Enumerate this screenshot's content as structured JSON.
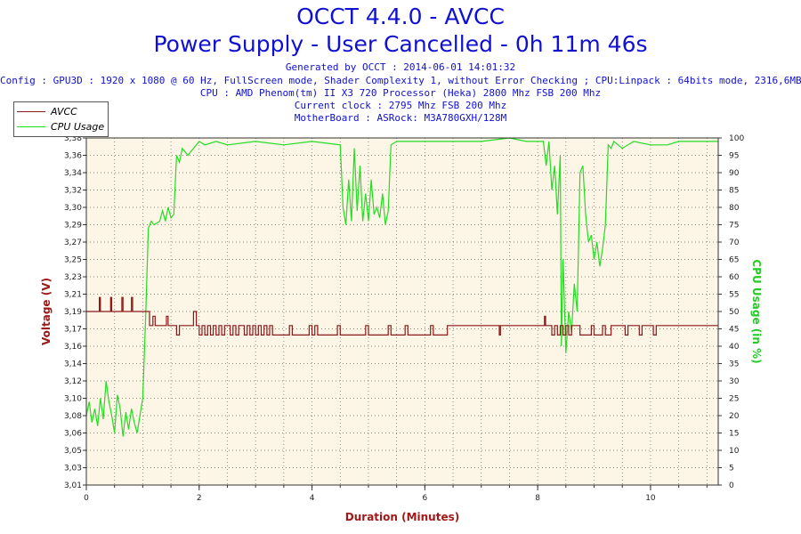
{
  "header": {
    "title": "OCCT 4.4.0 - AVCC",
    "subtitle": "Power Supply - User Cancelled - 0h 11m 46s",
    "generated": "Generated by OCCT : 2014-06-01 14:01:32",
    "config": "Config : GPU3D : 1920 x 1080 @ 60 Hz, FullScreen mode, Shader Complexity 1, without Error Checking ; CPU:Linpack : 64bits mode, 2316,6MB",
    "cpu": "CPU : AMD Phenom(tm) II X3 720 Processor (Heka) 2800 Mhz FSB 200 Mhz",
    "clock": "Current clock : 2795 Mhz FSB 200 Mhz",
    "motherboard": "MotherBoard : ASRock: M3A780GXH/128M"
  },
  "colors": {
    "avcc": "#8b1a1a",
    "cpu": "#22dd22",
    "plot_bg": "#fdf5e6",
    "title": "#1010d0"
  },
  "chart_data": {
    "type": "line",
    "xlabel": "Duration (Minutes)",
    "ylabel_left": "Voltage (V)",
    "ylabel_right": "CPU Usage (in %)",
    "xlim": [
      0,
      11.2
    ],
    "ylim_left": [
      3.01,
      3.38
    ],
    "ylim_right": [
      0,
      100
    ],
    "x_ticks": [
      "0",
      "2",
      "4",
      "6",
      "8",
      "10"
    ],
    "y_left_ticks": [
      "3,01",
      "3,03",
      "3,05",
      "3,06",
      "3,08",
      "3,10",
      "3,12",
      "3,14",
      "3,16",
      "3,17",
      "3,19",
      "3,21",
      "3,23",
      "3,25",
      "3,27",
      "3,29",
      "3,30",
      "3,32",
      "3,34",
      "3,36",
      "3,38"
    ],
    "y_right_ticks": [
      "0",
      "5",
      "10",
      "15",
      "20",
      "25",
      "30",
      "35",
      "40",
      "45",
      "50",
      "55",
      "60",
      "65",
      "70",
      "75",
      "80",
      "85",
      "90",
      "95",
      "100"
    ],
    "grid": true,
    "legend": {
      "position": "top-left"
    },
    "series": [
      {
        "name": "AVCC",
        "axis": "left",
        "step": true,
        "points": [
          [
            0,
            3.195
          ],
          [
            0.2,
            3.195
          ],
          [
            0.23,
            3.21
          ],
          [
            0.25,
            3.195
          ],
          [
            0.4,
            3.195
          ],
          [
            0.43,
            3.21
          ],
          [
            0.45,
            3.195
          ],
          [
            0.6,
            3.195
          ],
          [
            0.63,
            3.21
          ],
          [
            0.65,
            3.195
          ],
          [
            0.78,
            3.195
          ],
          [
            0.8,
            3.21
          ],
          [
            0.82,
            3.195
          ],
          [
            1.12,
            3.195
          ],
          [
            1.12,
            3.18
          ],
          [
            1.18,
            3.19
          ],
          [
            1.22,
            3.18
          ],
          [
            1.4,
            3.18
          ],
          [
            1.42,
            3.19
          ],
          [
            1.45,
            3.18
          ],
          [
            1.55,
            3.18
          ],
          [
            1.6,
            3.17
          ],
          [
            1.65,
            3.18
          ],
          [
            1.85,
            3.18
          ],
          [
            1.9,
            3.195
          ],
          [
            1.95,
            3.18
          ],
          [
            2.0,
            3.17
          ],
          [
            2.05,
            3.18
          ],
          [
            2.1,
            3.17
          ],
          [
            2.15,
            3.18
          ],
          [
            2.2,
            3.17
          ],
          [
            2.25,
            3.18
          ],
          [
            2.3,
            3.17
          ],
          [
            2.35,
            3.18
          ],
          [
            2.4,
            3.17
          ],
          [
            2.45,
            3.18
          ],
          [
            2.55,
            3.17
          ],
          [
            2.6,
            3.18
          ],
          [
            2.65,
            3.17
          ],
          [
            2.7,
            3.18
          ],
          [
            2.8,
            3.17
          ],
          [
            2.85,
            3.18
          ],
          [
            2.9,
            3.17
          ],
          [
            2.95,
            3.18
          ],
          [
            3.0,
            3.17
          ],
          [
            3.05,
            3.18
          ],
          [
            3.1,
            3.17
          ],
          [
            3.15,
            3.18
          ],
          [
            3.2,
            3.17
          ],
          [
            3.25,
            3.18
          ],
          [
            3.3,
            3.17
          ],
          [
            3.55,
            3.17
          ],
          [
            3.6,
            3.18
          ],
          [
            3.65,
            3.17
          ],
          [
            3.9,
            3.17
          ],
          [
            3.95,
            3.18
          ],
          [
            4.0,
            3.17
          ],
          [
            4.05,
            3.18
          ],
          [
            4.1,
            3.17
          ],
          [
            4.4,
            3.17
          ],
          [
            4.45,
            3.18
          ],
          [
            4.5,
            3.17
          ],
          [
            4.9,
            3.17
          ],
          [
            4.95,
            3.18
          ],
          [
            5.0,
            3.17
          ],
          [
            5.3,
            3.17
          ],
          [
            5.35,
            3.18
          ],
          [
            5.4,
            3.17
          ],
          [
            5.6,
            3.17
          ],
          [
            5.65,
            3.18
          ],
          [
            5.7,
            3.17
          ],
          [
            6.05,
            3.17
          ],
          [
            6.1,
            3.18
          ],
          [
            6.15,
            3.17
          ],
          [
            6.35,
            3.17
          ],
          [
            6.4,
            3.18
          ],
          [
            7.3,
            3.18
          ],
          [
            7.32,
            3.17
          ],
          [
            7.34,
            3.18
          ],
          [
            8.1,
            3.18
          ],
          [
            8.12,
            3.19
          ],
          [
            8.14,
            3.18
          ],
          [
            8.2,
            3.18
          ],
          [
            8.25,
            3.17
          ],
          [
            8.3,
            3.18
          ],
          [
            8.35,
            3.17
          ],
          [
            8.4,
            3.18
          ],
          [
            8.45,
            3.17
          ],
          [
            8.5,
            3.18
          ],
          [
            8.55,
            3.17
          ],
          [
            8.6,
            3.18
          ],
          [
            8.7,
            3.18
          ],
          [
            8.75,
            3.17
          ],
          [
            8.9,
            3.17
          ],
          [
            8.95,
            3.18
          ],
          [
            9.0,
            3.17
          ],
          [
            9.1,
            3.17
          ],
          [
            9.15,
            3.18
          ],
          [
            9.2,
            3.17
          ],
          [
            9.3,
            3.18
          ],
          [
            9.5,
            3.18
          ],
          [
            9.55,
            3.17
          ],
          [
            9.6,
            3.18
          ],
          [
            9.75,
            3.18
          ],
          [
            9.8,
            3.17
          ],
          [
            9.85,
            3.18
          ],
          [
            10.0,
            3.18
          ],
          [
            10.05,
            3.17
          ],
          [
            10.1,
            3.18
          ],
          [
            11.2,
            3.18
          ]
        ]
      },
      {
        "name": "CPU Usage",
        "axis": "right",
        "points": [
          [
            0,
            20
          ],
          [
            0.05,
            24
          ],
          [
            0.1,
            18
          ],
          [
            0.15,
            22
          ],
          [
            0.2,
            17
          ],
          [
            0.25,
            25
          ],
          [
            0.3,
            19
          ],
          [
            0.35,
            30
          ],
          [
            0.4,
            24
          ],
          [
            0.45,
            20
          ],
          [
            0.5,
            15
          ],
          [
            0.55,
            26
          ],
          [
            0.6,
            22
          ],
          [
            0.65,
            14
          ],
          [
            0.7,
            21
          ],
          [
            0.75,
            16
          ],
          [
            0.8,
            22
          ],
          [
            0.85,
            18
          ],
          [
            0.9,
            15
          ],
          [
            0.95,
            20
          ],
          [
            1.0,
            25
          ],
          [
            1.05,
            48
          ],
          [
            1.1,
            74
          ],
          [
            1.15,
            76
          ],
          [
            1.2,
            75
          ],
          [
            1.3,
            76
          ],
          [
            1.35,
            79
          ],
          [
            1.4,
            76
          ],
          [
            1.45,
            80
          ],
          [
            1.5,
            77
          ],
          [
            1.55,
            78
          ],
          [
            1.6,
            95
          ],
          [
            1.65,
            93
          ],
          [
            1.7,
            97
          ],
          [
            1.8,
            95
          ],
          [
            1.9,
            97
          ],
          [
            2.0,
            99
          ],
          [
            2.1,
            98
          ],
          [
            2.3,
            99
          ],
          [
            2.5,
            98
          ],
          [
            3.0,
            99
          ],
          [
            3.5,
            98
          ],
          [
            4.0,
            99
          ],
          [
            4.5,
            98
          ],
          [
            4.55,
            80
          ],
          [
            4.6,
            75
          ],
          [
            4.65,
            88
          ],
          [
            4.7,
            76
          ],
          [
            4.75,
            97
          ],
          [
            4.8,
            79
          ],
          [
            4.85,
            92
          ],
          [
            4.9,
            76
          ],
          [
            4.95,
            84
          ],
          [
            5.0,
            76
          ],
          [
            5.05,
            88
          ],
          [
            5.1,
            78
          ],
          [
            5.15,
            80
          ],
          [
            5.2,
            77
          ],
          [
            5.25,
            84
          ],
          [
            5.3,
            75
          ],
          [
            5.35,
            79
          ],
          [
            5.4,
            98
          ],
          [
            5.5,
            99
          ],
          [
            6.0,
            99
          ],
          [
            7.0,
            99
          ],
          [
            7.5,
            100
          ],
          [
            7.8,
            99
          ],
          [
            8.0,
            99
          ],
          [
            8.1,
            99
          ],
          [
            8.15,
            92
          ],
          [
            8.2,
            99
          ],
          [
            8.25,
            85
          ],
          [
            8.3,
            92
          ],
          [
            8.35,
            78
          ],
          [
            8.4,
            95
          ],
          [
            8.42,
            40
          ],
          [
            8.45,
            65
          ],
          [
            8.5,
            38
          ],
          [
            8.55,
            50
          ],
          [
            8.6,
            44
          ],
          [
            8.65,
            58
          ],
          [
            8.7,
            50
          ],
          [
            8.75,
            90
          ],
          [
            8.8,
            92
          ],
          [
            8.85,
            78
          ],
          [
            8.9,
            70
          ],
          [
            8.95,
            72
          ],
          [
            9.0,
            65
          ],
          [
            9.05,
            70
          ],
          [
            9.1,
            63
          ],
          [
            9.15,
            68
          ],
          [
            9.2,
            75
          ],
          [
            9.25,
            98
          ],
          [
            9.3,
            97
          ],
          [
            9.35,
            99
          ],
          [
            9.5,
            97
          ],
          [
            9.7,
            99
          ],
          [
            10.0,
            98
          ],
          [
            10.3,
            98
          ],
          [
            10.5,
            99
          ],
          [
            11.0,
            99
          ],
          [
            11.2,
            99
          ]
        ]
      }
    ]
  }
}
